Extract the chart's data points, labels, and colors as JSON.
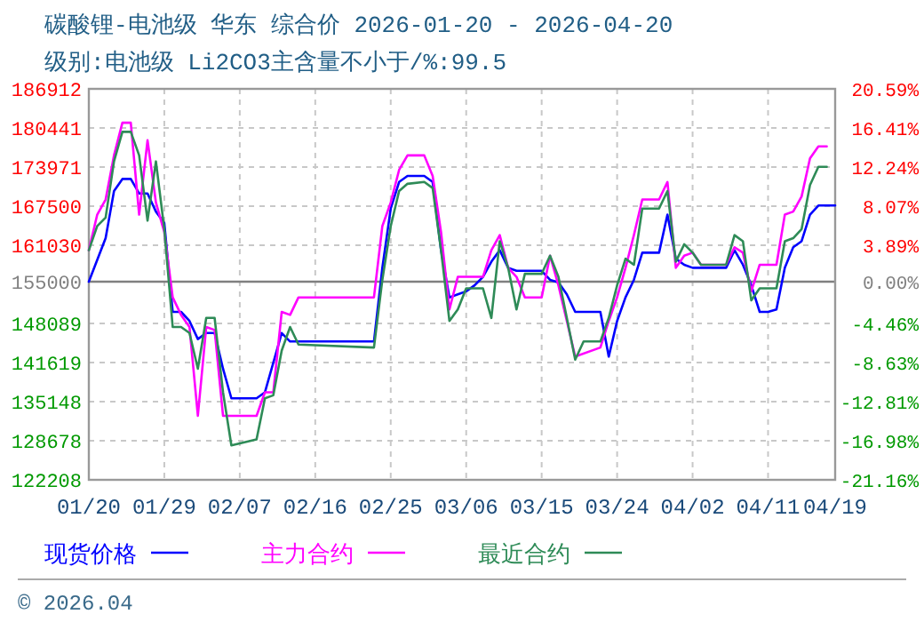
{
  "chart_data": {
    "type": "line",
    "title": "碳酸锂-电池级 华东 综合价 2026-01-20 - 2026-04-20",
    "subtitle": "级别:电池级 Li2CO3主含量不小于/%:99.5",
    "xlim": [
      "2026-01-20",
      "2026-04-19"
    ],
    "xticks": [
      {
        "value": "2026-01-20",
        "label": "01/20"
      },
      {
        "value": "2026-01-29",
        "label": "01/29"
      },
      {
        "value": "2026-02-07",
        "label": "02/07"
      },
      {
        "value": "2026-02-16",
        "label": "02/16"
      },
      {
        "value": "2026-02-25",
        "label": "02/25"
      },
      {
        "value": "2026-03-06",
        "label": "03/06"
      },
      {
        "value": "2026-03-15",
        "label": "03/15"
      },
      {
        "value": "2026-03-24",
        "label": "03/24"
      },
      {
        "value": "2026-04-02",
        "label": "04/02"
      },
      {
        "value": "2026-04-11",
        "label": "04/11"
      },
      {
        "value": "2026-04-19",
        "label": "04/19"
      }
    ],
    "ylim": [
      122208,
      186912
    ],
    "yticks": [
      122208,
      128678,
      135148,
      141619,
      148089,
      155000,
      161030,
      167500,
      173971,
      180441,
      186912
    ],
    "y2lim": [
      -21.16,
      20.59
    ],
    "y2ticks": [
      {
        "value": -21.16,
        "label": "-21.16%"
      },
      {
        "value": -16.98,
        "label": "-16.98%"
      },
      {
        "value": -12.81,
        "label": "-12.81%"
      },
      {
        "value": -8.63,
        "label": "-8.63%"
      },
      {
        "value": -4.46,
        "label": "-4.46%"
      },
      {
        "value": 0,
        "label": "0.00%"
      },
      {
        "value": 3.89,
        "label": "3.89%"
      },
      {
        "value": 8.07,
        "label": "8.07%"
      },
      {
        "value": 12.24,
        "label": "12.24%"
      },
      {
        "value": 16.41,
        "label": "16.41%"
      },
      {
        "value": 20.59,
        "label": "20.59%"
      }
    ],
    "ref_lines": [
      {
        "axis": "y",
        "value": 155000,
        "color": "#808080"
      }
    ],
    "grid": true,
    "legend": "bottom",
    "line_style": "solid",
    "marker": "none",
    "annotations": [
      "© 2026.04"
    ],
    "series": [
      {
        "name": "现货价格",
        "color": "#0000ff",
        "x": [
          "2026-01-20",
          "2026-01-22",
          "2026-01-23",
          "2026-01-24",
          "2026-01-25",
          "2026-01-26",
          "2026-01-27",
          "2026-01-28",
          "2026-01-29",
          "2026-01-30",
          "2026-01-31",
          "2026-02-01",
          "2026-02-02",
          "2026-02-03",
          "2026-02-04",
          "2026-02-05",
          "2026-02-06",
          "2026-02-09",
          "2026-02-10",
          "2026-02-11",
          "2026-02-12",
          "2026-02-13",
          "2026-02-23",
          "2026-02-24",
          "2026-02-25",
          "2026-02-26",
          "2026-02-27",
          "2026-03-01",
          "2026-03-02",
          "2026-03-03",
          "2026-03-04",
          "2026-03-05",
          "2026-03-06",
          "2026-03-07",
          "2026-03-08",
          "2026-03-09",
          "2026-03-10",
          "2026-03-11",
          "2026-03-12",
          "2026-03-15",
          "2026-03-16",
          "2026-03-17",
          "2026-03-18",
          "2026-03-19",
          "2026-03-22",
          "2026-03-23",
          "2026-03-24",
          "2026-03-25",
          "2026-03-26",
          "2026-03-27",
          "2026-03-29",
          "2026-03-30",
          "2026-03-31",
          "2026-04-01",
          "2026-04-02",
          "2026-04-06",
          "2026-04-07",
          "2026-04-08",
          "2026-04-09",
          "2026-04-10",
          "2026-04-11",
          "2026-04-12",
          "2026-04-13",
          "2026-04-14",
          "2026-04-15",
          "2026-04-16",
          "2026-04-17",
          "2026-04-19"
        ],
        "values": [
          155000,
          162200,
          170000,
          172000,
          172000,
          169600,
          169600,
          166600,
          164700,
          150000,
          150000,
          148500,
          145500,
          146500,
          146500,
          140600,
          135700,
          135700,
          136700,
          141600,
          146500,
          145100,
          145100,
          157300,
          167100,
          171500,
          172500,
          172500,
          171500,
          160200,
          152400,
          152900,
          153400,
          154400,
          155800,
          158300,
          160200,
          157300,
          156800,
          156800,
          155300,
          154900,
          152900,
          150000,
          150000,
          142600,
          148500,
          152400,
          155300,
          159800,
          159800,
          166100,
          158800,
          157800,
          157300,
          157300,
          160200,
          157800,
          154400,
          150000,
          150000,
          150400,
          157300,
          160700,
          161700,
          166100,
          167600,
          167600
        ]
      },
      {
        "name": "主力合约",
        "color": "#ff00ff",
        "x": [
          "2026-01-20",
          "2026-01-21",
          "2026-01-22",
          "2026-01-23",
          "2026-01-24",
          "2026-01-25",
          "2026-01-26",
          "2026-01-27",
          "2026-01-28",
          "2026-01-29",
          "2026-01-30",
          "2026-01-31",
          "2026-02-01",
          "2026-02-02",
          "2026-02-03",
          "2026-02-04",
          "2026-02-05",
          "2026-02-09",
          "2026-02-10",
          "2026-02-11",
          "2026-02-12",
          "2026-02-13",
          "2026-02-14",
          "2026-02-23",
          "2026-02-24",
          "2026-02-25",
          "2026-02-26",
          "2026-02-27",
          "2026-03-01",
          "2026-03-02",
          "2026-03-03",
          "2026-03-04",
          "2026-03-05",
          "2026-03-08",
          "2026-03-09",
          "2026-03-10",
          "2026-03-11",
          "2026-03-12",
          "2026-03-13",
          "2026-03-15",
          "2026-03-16",
          "2026-03-17",
          "2026-03-18",
          "2026-03-19",
          "2026-03-22",
          "2026-03-23",
          "2026-03-24",
          "2026-03-25",
          "2026-03-26",
          "2026-03-27",
          "2026-03-29",
          "2026-03-30",
          "2026-03-31",
          "2026-04-01",
          "2026-04-02",
          "2026-04-03",
          "2026-04-06",
          "2026-04-07",
          "2026-04-08",
          "2026-04-09",
          "2026-04-10",
          "2026-04-12",
          "2026-04-13",
          "2026-04-14",
          "2026-04-15",
          "2026-04-16",
          "2026-04-17",
          "2026-04-18"
        ],
        "values": [
          160200,
          166100,
          168600,
          175900,
          181300,
          181300,
          166100,
          178400,
          168100,
          163200,
          152400,
          149500,
          147500,
          132800,
          147500,
          147000,
          132800,
          132800,
          136700,
          136700,
          150000,
          149500,
          152400,
          152400,
          164200,
          168100,
          173500,
          175900,
          175900,
          172500,
          163200,
          150400,
          155800,
          155800,
          160200,
          162700,
          157300,
          155800,
          152400,
          152400,
          159300,
          154400,
          148500,
          142600,
          144100,
          148500,
          152400,
          157300,
          162700,
          168600,
          168600,
          171500,
          157300,
          159300,
          159800,
          157800,
          157800,
          160700,
          159800,
          153400,
          157800,
          157800,
          166100,
          166600,
          169100,
          175400,
          177400,
          177400
        ]
      },
      {
        "name": "最近合约",
        "color": "#2e8b57",
        "x": [
          "2026-01-20",
          "2026-01-21",
          "2026-01-22",
          "2026-01-23",
          "2026-01-24",
          "2026-01-25",
          "2026-01-26",
          "2026-01-27",
          "2026-01-28",
          "2026-01-29",
          "2026-01-30",
          "2026-01-31",
          "2026-02-01",
          "2026-02-02",
          "2026-02-03",
          "2026-02-04",
          "2026-02-05",
          "2026-02-06",
          "2026-02-09",
          "2026-02-10",
          "2026-02-11",
          "2026-02-12",
          "2026-02-13",
          "2026-02-14",
          "2026-02-23",
          "2026-02-24",
          "2026-02-25",
          "2026-02-26",
          "2026-02-27",
          "2026-03-01",
          "2026-03-02",
          "2026-03-03",
          "2026-03-04",
          "2026-03-05",
          "2026-03-06",
          "2026-03-08",
          "2026-03-09",
          "2026-03-10",
          "2026-03-11",
          "2026-03-12",
          "2026-03-13",
          "2026-03-15",
          "2026-03-16",
          "2026-03-17",
          "2026-03-18",
          "2026-03-19",
          "2026-03-20",
          "2026-03-22",
          "2026-03-23",
          "2026-03-24",
          "2026-03-25",
          "2026-03-26",
          "2026-03-27",
          "2026-03-29",
          "2026-03-30",
          "2026-03-31",
          "2026-04-01",
          "2026-04-02",
          "2026-04-03",
          "2026-04-06",
          "2026-04-07",
          "2026-04-08",
          "2026-04-09",
          "2026-04-10",
          "2026-04-12",
          "2026-04-13",
          "2026-04-14",
          "2026-04-15",
          "2026-04-16",
          "2026-04-17",
          "2026-04-18"
        ],
        "values": [
          160200,
          164200,
          165600,
          174900,
          179800,
          179800,
          175900,
          165100,
          174900,
          163700,
          147500,
          147500,
          146500,
          140600,
          149000,
          149000,
          136700,
          127900,
          128900,
          135700,
          136200,
          143600,
          147500,
          144600,
          144100,
          155300,
          164200,
          170000,
          171200,
          171500,
          170500,
          160200,
          148500,
          150400,
          153900,
          153900,
          149000,
          161700,
          157300,
          150400,
          156300,
          156300,
          159300,
          155800,
          149000,
          142100,
          145100,
          145100,
          149000,
          154400,
          158800,
          157800,
          167100,
          167100,
          170000,
          158300,
          161200,
          159800,
          157800,
          157800,
          162700,
          161700,
          151900,
          153900,
          153900,
          161700,
          162200,
          163700,
          171000,
          174000,
          174000
        ]
      }
    ]
  }
}
